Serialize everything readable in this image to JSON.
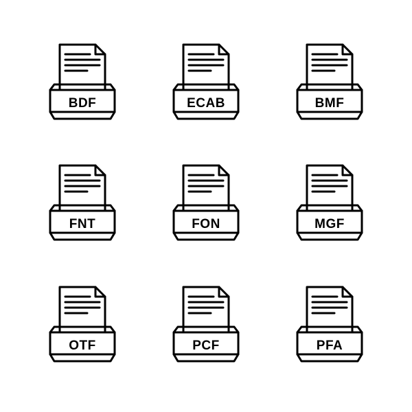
{
  "grid": {
    "columns": 3,
    "rows": 3,
    "background_color": "#ffffff",
    "stroke_color": "#000000",
    "stroke_width": 3,
    "label_fontsize": 19,
    "label_fontweight": 700
  },
  "icons": [
    {
      "label": "BDF",
      "name": "file-bdf-icon"
    },
    {
      "label": "ECAB",
      "name": "file-ecab-icon"
    },
    {
      "label": "BMF",
      "name": "file-bmf-icon"
    },
    {
      "label": "FNT",
      "name": "file-fnt-icon"
    },
    {
      "label": "FON",
      "name": "file-fon-icon"
    },
    {
      "label": "MGF",
      "name": "file-mgf-icon"
    },
    {
      "label": "OTF",
      "name": "file-otf-icon"
    },
    {
      "label": "PCF",
      "name": "file-pcf-icon"
    },
    {
      "label": "PFA",
      "name": "file-pfa-icon"
    }
  ]
}
